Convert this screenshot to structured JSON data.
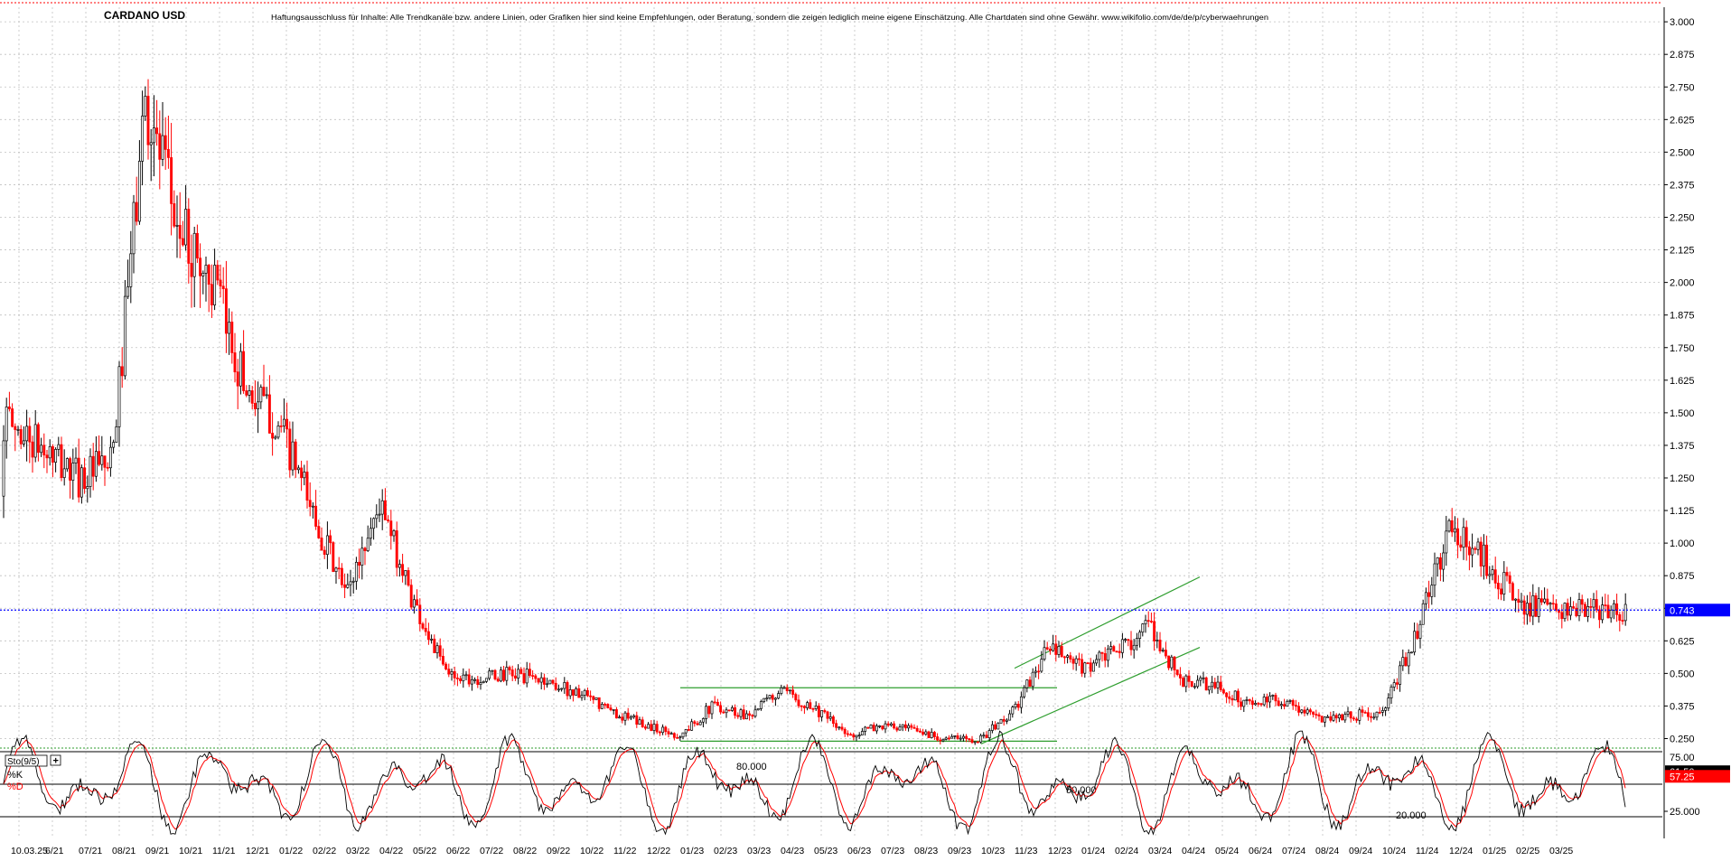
{
  "title": "CARDANO USD",
  "disclaimer": "Haftungsausschluss für Inhalte: Alle Trendkanäle bzw. andere Linien, oder Grafiken hier sind keine Empfehlungen, oder Beratung, sondern die zeigen lediglich meine eigene Einschätzung. Alle Chartdaten sind ohne Gewähr. www.wikifolio.com/de/de/p/cyberwaehrungen",
  "colors": {
    "up": "#000000",
    "down": "#ff0000",
    "grid": "#c0c0c0",
    "trendline": "#2e9e2e",
    "current_price_line": "#0000ff",
    "current_price_badge": "#0000ff",
    "k_badge": "#000000",
    "d_badge": "#ff0000"
  },
  "chart_data": [
    {
      "type": "candlestick",
      "title": "CARDANO USD",
      "ylim": [
        0.2,
        3.0
      ],
      "y_ticks": [
        "3.000",
        "2.875",
        "2.750",
        "2.625",
        "2.500",
        "2.375",
        "2.250",
        "2.125",
        "2.000",
        "1.875",
        "1.750",
        "1.625",
        "1.500",
        "1.375",
        "1.250",
        "1.125",
        "1.000",
        "0.875",
        "0.750",
        "0.625",
        "0.500",
        "0.375",
        "0.250"
      ],
      "x_ticks": [
        "10.03.25",
        "6/21",
        "07/21",
        "08/21",
        "09/21",
        "10/21",
        "11/21",
        "12/21",
        "01/22",
        "02/22",
        "03/22",
        "04/22",
        "05/22",
        "06/22",
        "07/22",
        "08/22",
        "09/22",
        "10/22",
        "11/22",
        "12/22",
        "01/23",
        "02/23",
        "03/23",
        "04/23",
        "05/23",
        "06/23",
        "07/23",
        "08/23",
        "09/23",
        "10/23",
        "11/23",
        "12/23",
        "01/24",
        "02/24",
        "03/24",
        "04/24",
        "05/24",
        "06/24",
        "07/24",
        "08/24",
        "09/24",
        "10/24",
        "11/24",
        "12/24",
        "01/25",
        "02/25",
        "03/25"
      ],
      "current_price": "0.743",
      "approx_close_path": [
        {
          "x": "05/21",
          "y": 1.18
        },
        {
          "x": "06/21",
          "y": 1.55
        },
        {
          "x": "07/21",
          "y": 1.25
        },
        {
          "x": "08/21",
          "y": 1.3
        },
        {
          "x": "09/21",
          "y": 2.7
        },
        {
          "x": "10/21",
          "y": 2.2
        },
        {
          "x": "11/21",
          "y": 2.0
        },
        {
          "x": "12/21",
          "y": 1.6
        },
        {
          "x": "01/22",
          "y": 1.45
        },
        {
          "x": "02/22",
          "y": 1.12
        },
        {
          "x": "03/22",
          "y": 0.8
        },
        {
          "x": "04/22",
          "y": 1.15
        },
        {
          "x": "05/22",
          "y": 0.78
        },
        {
          "x": "06/22",
          "y": 0.5
        },
        {
          "x": "07/22",
          "y": 0.48
        },
        {
          "x": "08/22",
          "y": 0.5
        },
        {
          "x": "09/22",
          "y": 0.47
        },
        {
          "x": "10/22",
          "y": 0.42
        },
        {
          "x": "11/22",
          "y": 0.35
        },
        {
          "x": "12/22",
          "y": 0.3
        },
        {
          "x": "01/23",
          "y": 0.26
        },
        {
          "x": "02/23",
          "y": 0.38
        },
        {
          "x": "03/23",
          "y": 0.34
        },
        {
          "x": "04/23",
          "y": 0.43
        },
        {
          "x": "05/23",
          "y": 0.37
        },
        {
          "x": "06/23",
          "y": 0.26
        },
        {
          "x": "07/23",
          "y": 0.3
        },
        {
          "x": "08/23",
          "y": 0.28
        },
        {
          "x": "09/23",
          "y": 0.25
        },
        {
          "x": "10/23",
          "y": 0.25
        },
        {
          "x": "11/23",
          "y": 0.36
        },
        {
          "x": "12/23",
          "y": 0.6
        },
        {
          "x": "01/24",
          "y": 0.52
        },
        {
          "x": "02/24",
          "y": 0.58
        },
        {
          "x": "03/24",
          "y": 0.68
        },
        {
          "x": "04/24",
          "y": 0.47
        },
        {
          "x": "05/24",
          "y": 0.45
        },
        {
          "x": "06/24",
          "y": 0.38
        },
        {
          "x": "07/24",
          "y": 0.4
        },
        {
          "x": "08/24",
          "y": 0.33
        },
        {
          "x": "09/24",
          "y": 0.34
        },
        {
          "x": "10/24",
          "y": 0.34
        },
        {
          "x": "11/24",
          "y": 0.65
        },
        {
          "x": "12/24",
          "y": 1.05
        },
        {
          "x": "01/25",
          "y": 0.95
        },
        {
          "x": "02/25",
          "y": 0.78
        },
        {
          "x": "03/25",
          "y": 0.74
        }
      ],
      "trendlines": [
        {
          "kind": "horizontal",
          "from": "01/23",
          "to": "12/23",
          "y": 0.445
        },
        {
          "kind": "horizontal",
          "from": "01/23",
          "to": "12/23",
          "y": 0.24
        },
        {
          "kind": "channel-upper",
          "from": {
            "x": "11/23",
            "y": 0.52
          },
          "to": {
            "x": "04/24",
            "y": 0.87
          }
        },
        {
          "kind": "channel-lower",
          "from": {
            "x": "10/23",
            "y": 0.23
          },
          "to": {
            "x": "04/24",
            "y": 0.6
          }
        }
      ]
    },
    {
      "type": "line",
      "title": "Sto(9/5)",
      "ylim": [
        0,
        100
      ],
      "reference_levels": [
        "80.000",
        "50.000",
        "20.000"
      ],
      "y_tick": "25.000",
      "y_tick_top": "75.00",
      "series": [
        {
          "name": "%K",
          "last": "61.50"
        },
        {
          "name": "%D",
          "last": "57.25"
        }
      ]
    }
  ]
}
